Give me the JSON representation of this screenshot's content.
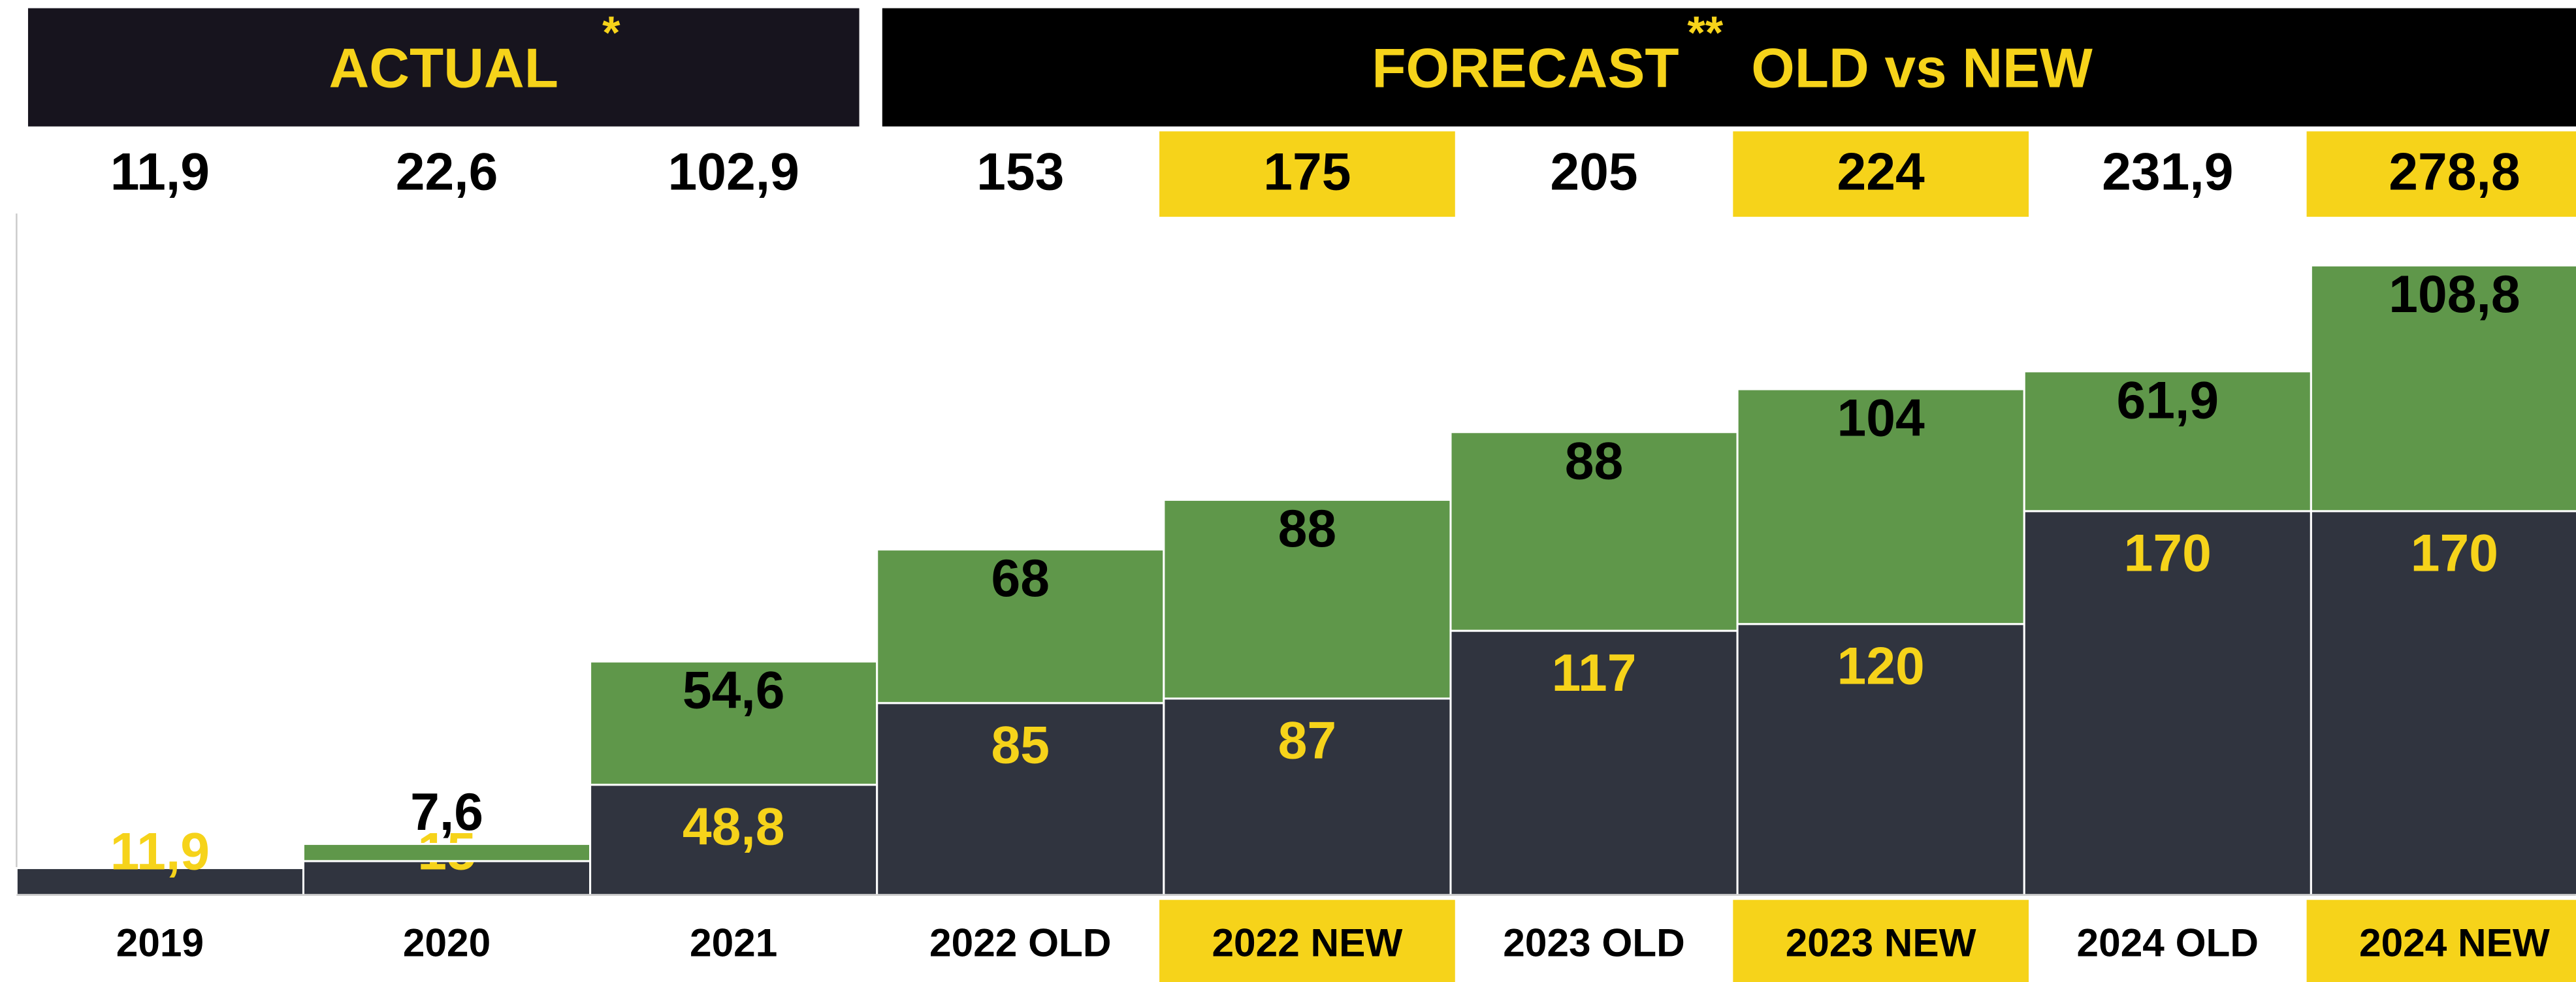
{
  "chart_data": {
    "type": "stacked_bar",
    "headers": [
      {
        "label": "ACTUAL",
        "note": "*",
        "color": "#17141e"
      },
      {
        "label": "FORECAST",
        "note": "**",
        "suffix": "OLD vs NEW",
        "color": "#000000"
      }
    ],
    "categories": [
      "2019",
      "2020",
      "2021",
      "2022 OLD",
      "2022 NEW",
      "2023 OLD",
      "2023 NEW",
      "2024 OLD",
      "2024 NEW"
    ],
    "highlight": [
      false,
      false,
      false,
      false,
      true,
      false,
      true,
      false,
      true
    ],
    "highlight_color": "#f6d31a",
    "series": [
      {
        "color": "#30343f",
        "label_color": "#f6d31a",
        "values": [
          11.9,
          15,
          48.8,
          85,
          87,
          117,
          120,
          170,
          170
        ],
        "value_labels": [
          "11,9",
          "15",
          "48,8",
          "85",
          "87",
          "117",
          "120",
          "170",
          "170"
        ]
      },
      {
        "color": "#5f974a",
        "label_color": "#000000",
        "values": [
          null,
          7.6,
          54.6,
          68,
          88,
          88,
          104,
          61.9,
          108.8
        ],
        "value_labels": [
          null,
          "7,6",
          "54,6",
          "68",
          "88",
          "88",
          "104",
          "61,9",
          "108,8"
        ]
      }
    ],
    "totals": [
      11.9,
      22.6,
      102.9,
      153,
      175,
      205,
      224,
      231.9,
      278.8
    ],
    "total_labels": [
      "11,9",
      "22,6",
      "102,9",
      "153",
      "175",
      "205",
      "224",
      "231,9",
      "278,8"
    ],
    "ylim": [
      0,
      280
    ]
  }
}
